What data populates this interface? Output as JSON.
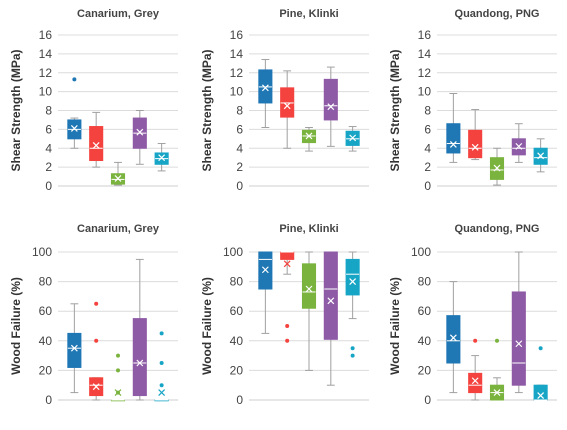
{
  "chart_data": [
    {
      "type": "box",
      "title": "Canarium, Grey",
      "ylabel": "Shear Strength (MPa)",
      "ylim": [
        0,
        16
      ],
      "yticks": [
        0,
        2,
        4,
        6,
        8,
        10,
        12,
        14,
        16
      ],
      "grid": true,
      "boxes": [
        {
          "color": "#1f77b4",
          "min": 4.0,
          "q1": 5.0,
          "median": 6.0,
          "q3": 7.0,
          "max": 7.2,
          "mean": 6.1,
          "outliers": [
            11.3
          ]
        },
        {
          "color": "#f4433e",
          "min": 2.0,
          "q1": 2.7,
          "median": 4.0,
          "q3": 6.3,
          "max": 7.8,
          "mean": 4.3,
          "outliers": []
        },
        {
          "color": "#7ab33e",
          "min": 0.1,
          "q1": 0.2,
          "median": 0.7,
          "q3": 1.3,
          "max": 2.5,
          "mean": 0.8,
          "outliers": []
        },
        {
          "color": "#8e5ba6",
          "min": 2.3,
          "q1": 4.0,
          "median": 5.6,
          "q3": 7.2,
          "max": 8.0,
          "mean": 5.7,
          "outliers": []
        },
        {
          "color": "#17a5c6",
          "min": 1.6,
          "q1": 2.3,
          "median": 2.9,
          "q3": 3.5,
          "max": 4.5,
          "mean": 3.0,
          "outliers": []
        }
      ]
    },
    {
      "type": "box",
      "title": "Pine, Klinki",
      "ylabel": "Shear Strength (MPa)",
      "ylim": [
        0,
        16
      ],
      "yticks": [
        0,
        2,
        4,
        6,
        8,
        10,
        12,
        14,
        16
      ],
      "grid": true,
      "boxes": [
        {
          "color": "#1f77b4",
          "min": 6.2,
          "q1": 8.8,
          "median": 10.5,
          "q3": 12.3,
          "max": 13.4,
          "mean": 10.4,
          "outliers": []
        },
        {
          "color": "#f4433e",
          "min": 4.0,
          "q1": 7.3,
          "median": 8.8,
          "q3": 10.4,
          "max": 12.2,
          "mean": 8.5,
          "outliers": []
        },
        {
          "color": "#7ab33e",
          "min": 3.7,
          "q1": 4.6,
          "median": 5.3,
          "q3": 5.9,
          "max": 6.2,
          "mean": 5.3,
          "outliers": []
        },
        {
          "color": "#8e5ba6",
          "min": 4.2,
          "q1": 7.0,
          "median": 8.5,
          "q3": 11.3,
          "max": 12.6,
          "mean": 8.4,
          "outliers": []
        },
        {
          "color": "#17a5c6",
          "min": 3.7,
          "q1": 4.3,
          "median": 5.0,
          "q3": 5.8,
          "max": 6.3,
          "mean": 5.1,
          "outliers": []
        }
      ]
    },
    {
      "type": "box",
      "title": "Quandong, PNG",
      "ylabel": "Shear Strength (MPa)",
      "ylim": [
        0,
        16
      ],
      "yticks": [
        0,
        2,
        4,
        6,
        8,
        10,
        12,
        14,
        16
      ],
      "grid": true,
      "boxes": [
        {
          "color": "#1f77b4",
          "min": 2.5,
          "q1": 3.5,
          "median": 4.5,
          "q3": 6.6,
          "max": 9.8,
          "mean": 4.4,
          "outliers": []
        },
        {
          "color": "#f4433e",
          "min": 2.8,
          "q1": 3.0,
          "median": 4.0,
          "q3": 5.9,
          "max": 8.1,
          "mean": 4.1,
          "outliers": []
        },
        {
          "color": "#7ab33e",
          "min": 0.1,
          "q1": 0.7,
          "median": 1.7,
          "q3": 3.0,
          "max": 4.0,
          "mean": 1.9,
          "outliers": []
        },
        {
          "color": "#8e5ba6",
          "min": 2.5,
          "q1": 3.3,
          "median": 4.0,
          "q3": 5.0,
          "max": 6.6,
          "mean": 4.2,
          "outliers": []
        },
        {
          "color": "#17a5c6",
          "min": 1.5,
          "q1": 2.3,
          "median": 3.0,
          "q3": 4.0,
          "max": 5.0,
          "mean": 3.2,
          "outliers": []
        }
      ]
    },
    {
      "type": "box",
      "title": "Canarium, Grey",
      "ylabel": "Wood Failure (%)",
      "ylim": [
        0,
        100
      ],
      "yticks": [
        0,
        20,
        40,
        60,
        80,
        100
      ],
      "grid": true,
      "boxes": [
        {
          "color": "#1f77b4",
          "min": 5,
          "q1": 22,
          "median": 35,
          "q3": 45,
          "max": 65,
          "mean": 35,
          "outliers": []
        },
        {
          "color": "#f4433e",
          "min": 0,
          "q1": 3,
          "median": 10,
          "q3": 15,
          "max": 15,
          "mean": 9,
          "outliers": [
            40,
            65
          ]
        },
        {
          "color": "#7ab33e",
          "min": 0,
          "q1": 0,
          "median": 0,
          "q3": 0,
          "max": 0,
          "mean": 5,
          "outliers": [
            30,
            20,
            5
          ]
        },
        {
          "color": "#8e5ba6",
          "min": 0,
          "q1": 3,
          "median": 25,
          "q3": 55,
          "max": 95,
          "mean": 25,
          "outliers": []
        },
        {
          "color": "#17a5c6",
          "min": 0,
          "q1": 0,
          "median": 0,
          "q3": 0,
          "max": 0,
          "mean": 5,
          "outliers": [
            45,
            25,
            10
          ]
        }
      ]
    },
    {
      "type": "box",
      "title": "Pine, Klinki",
      "ylabel": "Wood Failure (%)",
      "ylim": [
        0,
        100
      ],
      "yticks": [
        0,
        20,
        40,
        60,
        80,
        100
      ],
      "grid": true,
      "boxes": [
        {
          "color": "#1f77b4",
          "min": 45,
          "q1": 75,
          "median": 95,
          "q3": 100,
          "max": 100,
          "mean": 88,
          "outliers": []
        },
        {
          "color": "#f4433e",
          "min": 85,
          "q1": 95,
          "median": 100,
          "q3": 100,
          "max": 100,
          "mean": 92,
          "outliers": [
            50,
            40
          ]
        },
        {
          "color": "#7ab33e",
          "min": 20,
          "q1": 62,
          "median": 73,
          "q3": 92,
          "max": 100,
          "mean": 75,
          "outliers": []
        },
        {
          "color": "#8e5ba6",
          "min": 10,
          "q1": 41,
          "median": 75,
          "q3": 100,
          "max": 100,
          "mean": 67,
          "outliers": []
        },
        {
          "color": "#17a5c6",
          "min": 55,
          "q1": 71,
          "median": 85,
          "q3": 95,
          "max": 100,
          "mean": 80,
          "outliers": [
            35,
            30
          ]
        }
      ]
    },
    {
      "type": "box",
      "title": "Quandong, PNG",
      "ylabel": "Wood Failure (%)",
      "ylim": [
        0,
        100
      ],
      "yticks": [
        0,
        20,
        40,
        60,
        80,
        100
      ],
      "grid": true,
      "boxes": [
        {
          "color": "#1f77b4",
          "min": 5,
          "q1": 25,
          "median": 40,
          "q3": 57,
          "max": 80,
          "mean": 42,
          "outliers": []
        },
        {
          "color": "#f4433e",
          "min": 0,
          "q1": 5,
          "median": 10,
          "q3": 18,
          "max": 30,
          "mean": 13,
          "outliers": [
            40
          ]
        },
        {
          "color": "#7ab33e",
          "min": 0,
          "q1": 0,
          "median": 5,
          "q3": 10,
          "max": 15,
          "mean": 5,
          "outliers": [
            40
          ]
        },
        {
          "color": "#8e5ba6",
          "min": 5,
          "q1": 10,
          "median": 25,
          "q3": 73,
          "max": 100,
          "mean": 38,
          "outliers": []
        },
        {
          "color": "#17a5c6",
          "min": 0,
          "q1": 0,
          "median": 0,
          "q3": 10,
          "max": 10,
          "mean": 3,
          "outliers": [
            35
          ]
        }
      ]
    }
  ]
}
